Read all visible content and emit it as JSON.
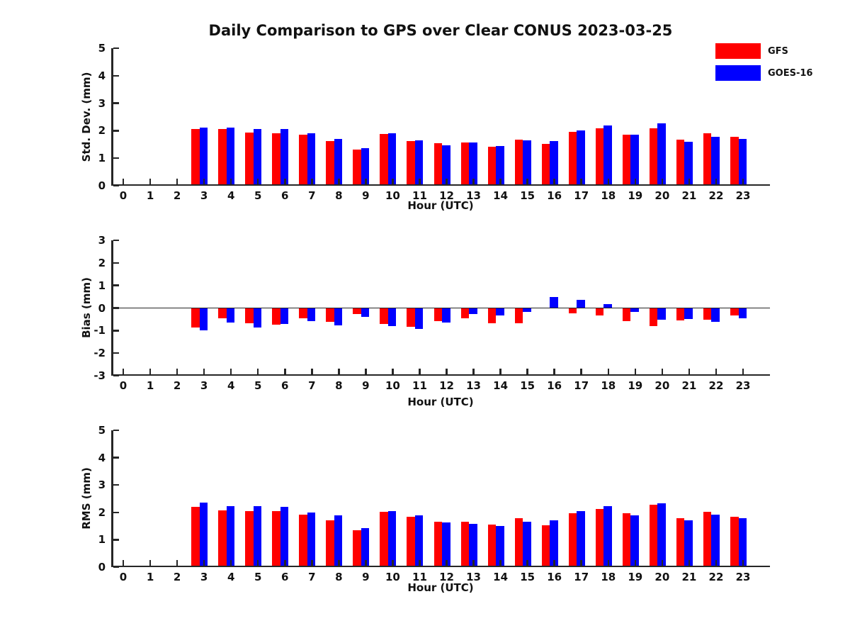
{
  "title": "Daily Comparison to GPS over Clear CONUS 2023-03-25",
  "legend": {
    "items": [
      {
        "label": "GFS",
        "color": "#ff0000"
      },
      {
        "label": "GOES-16",
        "color": "#0000ff"
      }
    ]
  },
  "colors": {
    "gfs": "#ff0000",
    "goes16": "#0000ff",
    "axis": "#262626"
  },
  "chart_data": [
    {
      "type": "bar",
      "ylabel": "Std. Dev. (mm)",
      "xlabel": "Hour (UTC)",
      "ylim": [
        0,
        5
      ],
      "yticks": [
        0,
        1,
        2,
        3,
        4,
        5
      ],
      "zero_line": false,
      "legend_position": "top-right-outside",
      "grid": false,
      "categories": [
        0,
        1,
        2,
        3,
        4,
        5,
        6,
        7,
        8,
        9,
        10,
        11,
        12,
        13,
        14,
        15,
        16,
        17,
        18,
        19,
        20,
        21,
        22,
        23
      ],
      "series": [
        {
          "name": "GFS",
          "color": "#ff0000",
          "values": [
            null,
            null,
            null,
            2.05,
            2.05,
            1.93,
            1.9,
            1.85,
            1.62,
            1.31,
            1.87,
            1.62,
            1.54,
            1.58,
            1.42,
            1.67,
            1.51,
            1.95,
            2.1,
            1.85,
            2.1,
            1.67,
            1.92,
            1.79
          ]
        },
        {
          "name": "GOES-16",
          "color": "#0000ff",
          "values": [
            null,
            null,
            null,
            2.12,
            2.12,
            2.05,
            2.07,
            1.9,
            1.71,
            1.37,
            1.9,
            1.64,
            1.47,
            1.58,
            1.44,
            1.64,
            1.62,
            2.0,
            2.2,
            1.85,
            2.26,
            1.61,
            1.79,
            1.71
          ]
        }
      ]
    },
    {
      "type": "bar",
      "ylabel": "Bias (mm)",
      "xlabel": "Hour (UTC)",
      "ylim": [
        -3,
        3
      ],
      "yticks": [
        -3,
        -2,
        -1,
        0,
        1,
        2,
        3
      ],
      "zero_line": true,
      "grid": false,
      "categories": [
        0,
        1,
        2,
        3,
        4,
        5,
        6,
        7,
        8,
        9,
        10,
        11,
        12,
        13,
        14,
        15,
        16,
        17,
        18,
        19,
        20,
        21,
        22,
        23
      ],
      "series": [
        {
          "name": "GFS",
          "color": "#ff0000",
          "values": [
            null,
            null,
            null,
            -0.86,
            -0.45,
            -0.69,
            -0.73,
            -0.47,
            -0.62,
            -0.26,
            -0.72,
            -0.84,
            -0.59,
            -0.45,
            -0.66,
            -0.67,
            0.0,
            -0.23,
            -0.32,
            -0.57,
            -0.8,
            -0.55,
            -0.52,
            -0.33
          ]
        },
        {
          "name": "GOES-16",
          "color": "#0000ff",
          "values": [
            null,
            null,
            null,
            -0.98,
            -0.64,
            -0.86,
            -0.72,
            -0.58,
            -0.76,
            -0.4,
            -0.8,
            -0.94,
            -0.64,
            -0.28,
            -0.34,
            -0.17,
            0.48,
            0.36,
            0.16,
            -0.17,
            -0.52,
            -0.5,
            -0.62,
            -0.45
          ]
        }
      ]
    },
    {
      "type": "bar",
      "ylabel": "RMS (mm)",
      "xlabel": "Hour (UTC)",
      "ylim": [
        0,
        5
      ],
      "yticks": [
        0,
        1,
        2,
        3,
        4,
        5
      ],
      "zero_line": false,
      "grid": false,
      "categories": [
        0,
        1,
        2,
        3,
        4,
        5,
        6,
        7,
        8,
        9,
        10,
        11,
        12,
        13,
        14,
        15,
        16,
        17,
        18,
        19,
        20,
        21,
        22,
        23
      ],
      "series": [
        {
          "name": "GFS",
          "color": "#ff0000",
          "values": [
            null,
            null,
            null,
            2.2,
            2.07,
            2.05,
            2.04,
            1.93,
            1.72,
            1.34,
            2.01,
            1.84,
            1.66,
            1.66,
            1.56,
            1.79,
            1.53,
            1.98,
            2.13,
            1.97,
            2.28,
            1.78,
            2.03,
            1.85
          ]
        },
        {
          "name": "GOES-16",
          "color": "#0000ff",
          "values": [
            null,
            null,
            null,
            2.35,
            2.22,
            2.22,
            2.21,
            2.0,
            1.88,
            1.42,
            2.05,
            1.88,
            1.62,
            1.59,
            1.49,
            1.67,
            1.7,
            2.05,
            2.23,
            1.9,
            2.34,
            1.71,
            1.91,
            1.78
          ]
        }
      ]
    }
  ]
}
